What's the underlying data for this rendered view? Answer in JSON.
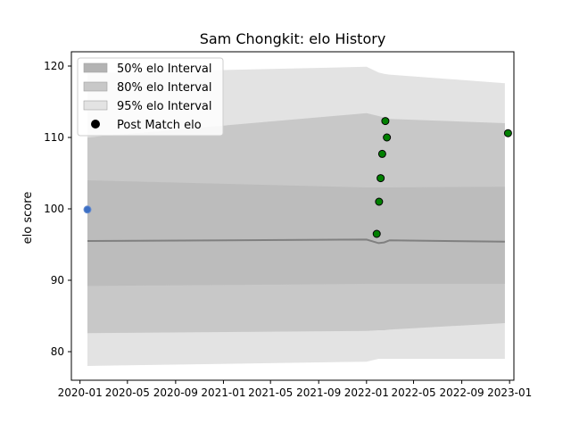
{
  "chart_data": {
    "type": "area",
    "title": "Sam Chongkit: elo History",
    "xlabel": "",
    "ylabel": "elo score",
    "xlim": [
      "2019-12-10",
      "2023-01-12"
    ],
    "ylim": [
      76,
      122
    ],
    "x_tick_labels": [
      "2020-01",
      "2020-05",
      "2020-09",
      "2021-01",
      "2021-05",
      "2021-09",
      "2022-01",
      "2022-05",
      "2022-09",
      "2023-01"
    ],
    "y_ticks": [
      80,
      90,
      100,
      110,
      120
    ],
    "grid": false,
    "legend_placement": "top-left",
    "legend": [
      "50% elo Interval",
      "80% elo Interval",
      "95% elo Interval",
      "Post Match elo"
    ],
    "bands": {
      "x": [
        "2020-01-20",
        "2022-01-01",
        "2022-02-01",
        "2022-02-15",
        "2022-03-01",
        "2022-12-20"
      ],
      "mean": [
        95.5,
        95.7,
        95.2,
        95.3,
        95.6,
        95.4
      ],
      "band_50": {
        "lower": [
          89.2,
          89.5,
          89.5,
          89.5,
          89.5,
          89.5
        ],
        "upper": [
          104.0,
          103.0,
          103.0,
          103.0,
          103.0,
          103.1
        ]
      },
      "band_80": {
        "lower": [
          82.6,
          82.9,
          83.0,
          83.0,
          83.1,
          84.0
        ],
        "upper": [
          110.0,
          113.4,
          113.0,
          112.8,
          112.6,
          112.0
        ]
      },
      "band_95": {
        "lower": [
          78.0,
          78.6,
          79.0,
          79.0,
          79.0,
          79.0
        ],
        "upper": [
          119.0,
          119.9,
          119.1,
          118.9,
          118.8,
          117.6
        ]
      }
    },
    "initial_point": {
      "x": "2020-01-20",
      "y": 99.9,
      "color": "#3c6fc4"
    },
    "series": [
      {
        "name": "Post Match elo",
        "x": [
          "2022-01-27",
          "2022-02-02",
          "2022-02-06",
          "2022-02-10",
          "2022-02-18",
          "2022-02-22",
          "2022-12-28"
        ],
        "y": [
          96.5,
          101.0,
          104.3,
          107.7,
          112.3,
          110.0,
          110.6
        ],
        "color": "#008000"
      }
    ],
    "colors": {
      "band_50": "#b3b3b3",
      "band_80": "#c8c8c8",
      "band_95": "#e3e3e3",
      "mean": "#808080",
      "point": "#008000",
      "initial": "#3c6fc4"
    }
  }
}
